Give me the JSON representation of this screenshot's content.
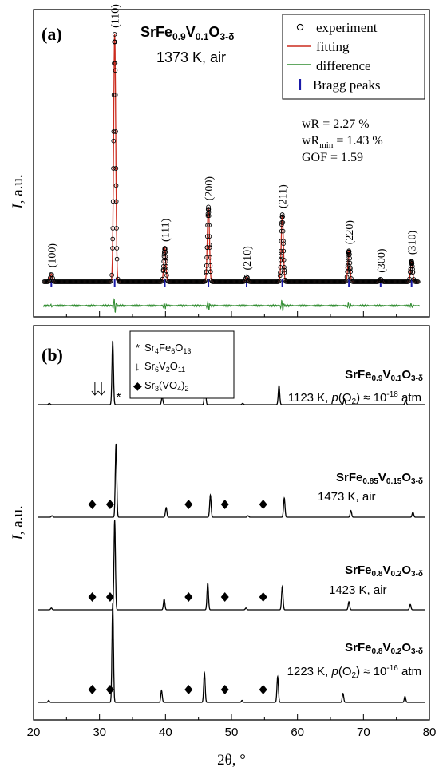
{
  "x_axis": {
    "label": "2θ, °",
    "range": [
      20,
      80
    ],
    "ticks": [
      "20",
      "30",
      "40",
      "50",
      "60",
      "70",
      "80"
    ],
    "tick_values": [
      20,
      30,
      40,
      50,
      60,
      70,
      80
    ]
  },
  "panel_a": {
    "letter": "(a)",
    "compound": "SrFe0.9V0.1O3-δ",
    "compound_parts": {
      "a": "SrFe",
      "s1": "0.9",
      "b": "V",
      "s2": "0.1",
      "c": "O",
      "s3": "3-δ"
    },
    "condition": "1373 K, air",
    "ylabel_italic": "I",
    "ylabel_rest": ", a.u.",
    "legend": [
      {
        "label": "experiment",
        "color": "#000000",
        "marker": "circle"
      },
      {
        "label": "fitting",
        "color": "#cc2b1e",
        "marker": "line"
      },
      {
        "label": "difference",
        "color": "#2e8b2e",
        "marker": "line"
      },
      {
        "label": "Bragg peaks",
        "color": "#1a1aa8",
        "marker": "tick"
      }
    ],
    "stats": {
      "wR": "wR = 2.27 %",
      "wRmin_main": "wR",
      "wRmin_sub": "min",
      "wRmin_value": " = 1.43 %",
      "gof": "GOF = 1.59"
    },
    "colors": {
      "fit": "#cc2b1e",
      "difference": "#2e8b2e",
      "bragg": "#1a1aa8",
      "experiment": "#000000"
    }
  },
  "panel_b": {
    "letter": "(b)",
    "ylabel_italic": "I",
    "ylabel_rest": ", a.u.",
    "legend": [
      {
        "symbol": "*",
        "parts": {
          "a": "Sr",
          "s1": "4",
          "b": "Fe",
          "s2": "6",
          "c": "O",
          "s3": "13"
        }
      },
      {
        "symbol": "↓",
        "parts": {
          "a": "Sr",
          "s1": "6",
          "b": "V",
          "s2": "2",
          "c": "O",
          "s3": "11"
        }
      },
      {
        "symbol": "◆",
        "parts": {
          "a": "Sr",
          "s1": "3",
          "b": "(VO",
          "s2": "4",
          "c": ")",
          "s3": "2"
        }
      }
    ],
    "trace_labels": [
      {
        "a": "SrFe",
        "s1": "0.9",
        "b": "V",
        "s2": "0.1",
        "c": "O",
        "s3": "3-δ",
        "cond": "1123 K, ",
        "p": "p",
        "po2": "(O",
        "po2sub": "2",
        "po2end": ") ≈ 10",
        "exp": "-18",
        "unit": " atm"
      },
      {
        "a": "SrFe",
        "s1": "0.85",
        "b": "V",
        "s2": "0.15",
        "c": "O",
        "s3": "3-δ",
        "cond": "1473 K, air"
      },
      {
        "a": "SrFe",
        "s1": "0.8",
        "b": "V",
        "s2": "0.2",
        "c": "O",
        "s3": "3-δ",
        "cond": "1423 K, air"
      },
      {
        "a": "SrFe",
        "s1": "0.8",
        "b": "V",
        "s2": "0.2",
        "c": "O",
        "s3": "3-δ",
        "cond": "1223 K, ",
        "p": "p",
        "po2": "(O",
        "po2sub": "2",
        "po2end": ") ≈ 10",
        "exp": "-16",
        "unit": " atm"
      }
    ]
  },
  "chart_data": [
    {
      "type": "line",
      "title": "SrFe0.9V0.1O3-δ 1373 K, air",
      "xlabel": "2θ, °",
      "ylabel": "I, a.u.",
      "xlim": [
        20,
        80
      ],
      "ylim": [
        0,
        1.0
      ],
      "series": [
        {
          "name": "experiment",
          "marker": "circle"
        },
        {
          "name": "fitting",
          "marker": "line"
        },
        {
          "name": "difference",
          "marker": "line"
        },
        {
          "name": "Bragg peaks",
          "marker": "tick"
        }
      ],
      "peaks": [
        {
          "hkl": "(100)",
          "x": 22.7,
          "y": 0.03
        },
        {
          "hkl": "(110)",
          "x": 32.3,
          "y": 0.96
        },
        {
          "hkl": "(111)",
          "x": 39.9,
          "y": 0.13
        },
        {
          "hkl": "(200)",
          "x": 46.5,
          "y": 0.29
        },
        {
          "hkl": "(210)",
          "x": 52.3,
          "y": 0.02
        },
        {
          "hkl": "(211)",
          "x": 57.7,
          "y": 0.26
        },
        {
          "hkl": "(220)",
          "x": 67.8,
          "y": 0.12
        },
        {
          "hkl": "(300)",
          "x": 72.6,
          "y": 0.01
        },
        {
          "hkl": "(310)",
          "x": 77.3,
          "y": 0.08
        }
      ],
      "bragg_positions": [
        22.7,
        32.3,
        39.9,
        46.5,
        52.3,
        57.7,
        67.8,
        72.6,
        77.3
      ],
      "difference_spikes": [
        {
          "x": 22.7,
          "a": 0.2
        },
        {
          "x": 32.3,
          "a": 1.0
        },
        {
          "x": 39.9,
          "a": 0.4
        },
        {
          "x": 46.5,
          "a": 0.6
        },
        {
          "x": 57.7,
          "a": 0.8
        },
        {
          "x": 67.8,
          "a": 0.45
        },
        {
          "x": 77.3,
          "a": 0.3
        }
      ],
      "annotations": [
        "wR = 2.27 %",
        "wRmin = 1.43 %",
        "GOF = 1.59"
      ]
    },
    {
      "type": "line",
      "xlabel": "2θ, °",
      "ylabel": "I, a.u.",
      "xlim": [
        20,
        80
      ],
      "series": [
        {
          "name": "SrFe0.9V0.1O3-δ 1123 K, p(O2) ≈ 10-18 atm",
          "peaks": [
            [
              22.4,
              0.02
            ],
            [
              32.0,
              1.0
            ],
            [
              39.5,
              0.12
            ],
            [
              46.0,
              0.3
            ],
            [
              51.7,
              0.02
            ],
            [
              57.2,
              0.3
            ],
            [
              67.1,
              0.09
            ],
            [
              76.4,
              0.06
            ]
          ],
          "markers": [
            {
              "symbol": "↓",
              "x": 29.3
            },
            {
              "symbol": "↓",
              "x": 30.3
            },
            {
              "symbol": "*",
              "x": 32.9
            }
          ]
        },
        {
          "name": "SrFe0.85V0.15O3-δ 1473 K, air",
          "peaks": [
            [
              22.8,
              0.02
            ],
            [
              32.5,
              1.0
            ],
            [
              40.1,
              0.13
            ],
            [
              46.8,
              0.3
            ],
            [
              52.5,
              0.02
            ],
            [
              58.0,
              0.26
            ],
            [
              68.1,
              0.09
            ],
            [
              77.5,
              0.07
            ]
          ],
          "markers": [
            {
              "symbol": "◆",
              "x": 28.9
            },
            {
              "symbol": "◆",
              "x": 31.6
            },
            {
              "symbol": "◆",
              "x": 43.5
            },
            {
              "symbol": "◆",
              "x": 49.0
            },
            {
              "symbol": "◆",
              "x": 54.8
            }
          ]
        },
        {
          "name": "SrFe0.8V0.2O3-δ 1423 K, air",
          "peaks": [
            [
              22.7,
              0.02
            ],
            [
              32.3,
              1.0
            ],
            [
              39.8,
              0.12
            ],
            [
              46.4,
              0.3
            ],
            [
              52.2,
              0.02
            ],
            [
              57.7,
              0.26
            ],
            [
              67.8,
              0.09
            ],
            [
              77.1,
              0.06
            ]
          ],
          "markers": [
            {
              "symbol": "◆",
              "x": 28.9
            },
            {
              "symbol": "◆",
              "x": 31.6
            },
            {
              "symbol": "◆",
              "x": 43.5
            },
            {
              "symbol": "◆",
              "x": 49.0
            },
            {
              "symbol": "◆",
              "x": 54.8
            }
          ]
        },
        {
          "name": "SrFe0.8V0.2O3-δ 1223 K, p(O2) ≈ 10-16 atm",
          "peaks": [
            [
              22.3,
              0.02
            ],
            [
              32.0,
              1.0
            ],
            [
              39.4,
              0.12
            ],
            [
              45.9,
              0.3
            ],
            [
              51.6,
              0.02
            ],
            [
              57.0,
              0.26
            ],
            [
              66.9,
              0.09
            ],
            [
              76.3,
              0.06
            ]
          ],
          "markers": [
            {
              "symbol": "◆",
              "x": 28.9
            },
            {
              "symbol": "◆",
              "x": 31.6
            },
            {
              "symbol": "◆",
              "x": 43.5
            },
            {
              "symbol": "◆",
              "x": 49.0
            },
            {
              "symbol": "◆",
              "x": 54.8
            }
          ]
        }
      ]
    }
  ]
}
